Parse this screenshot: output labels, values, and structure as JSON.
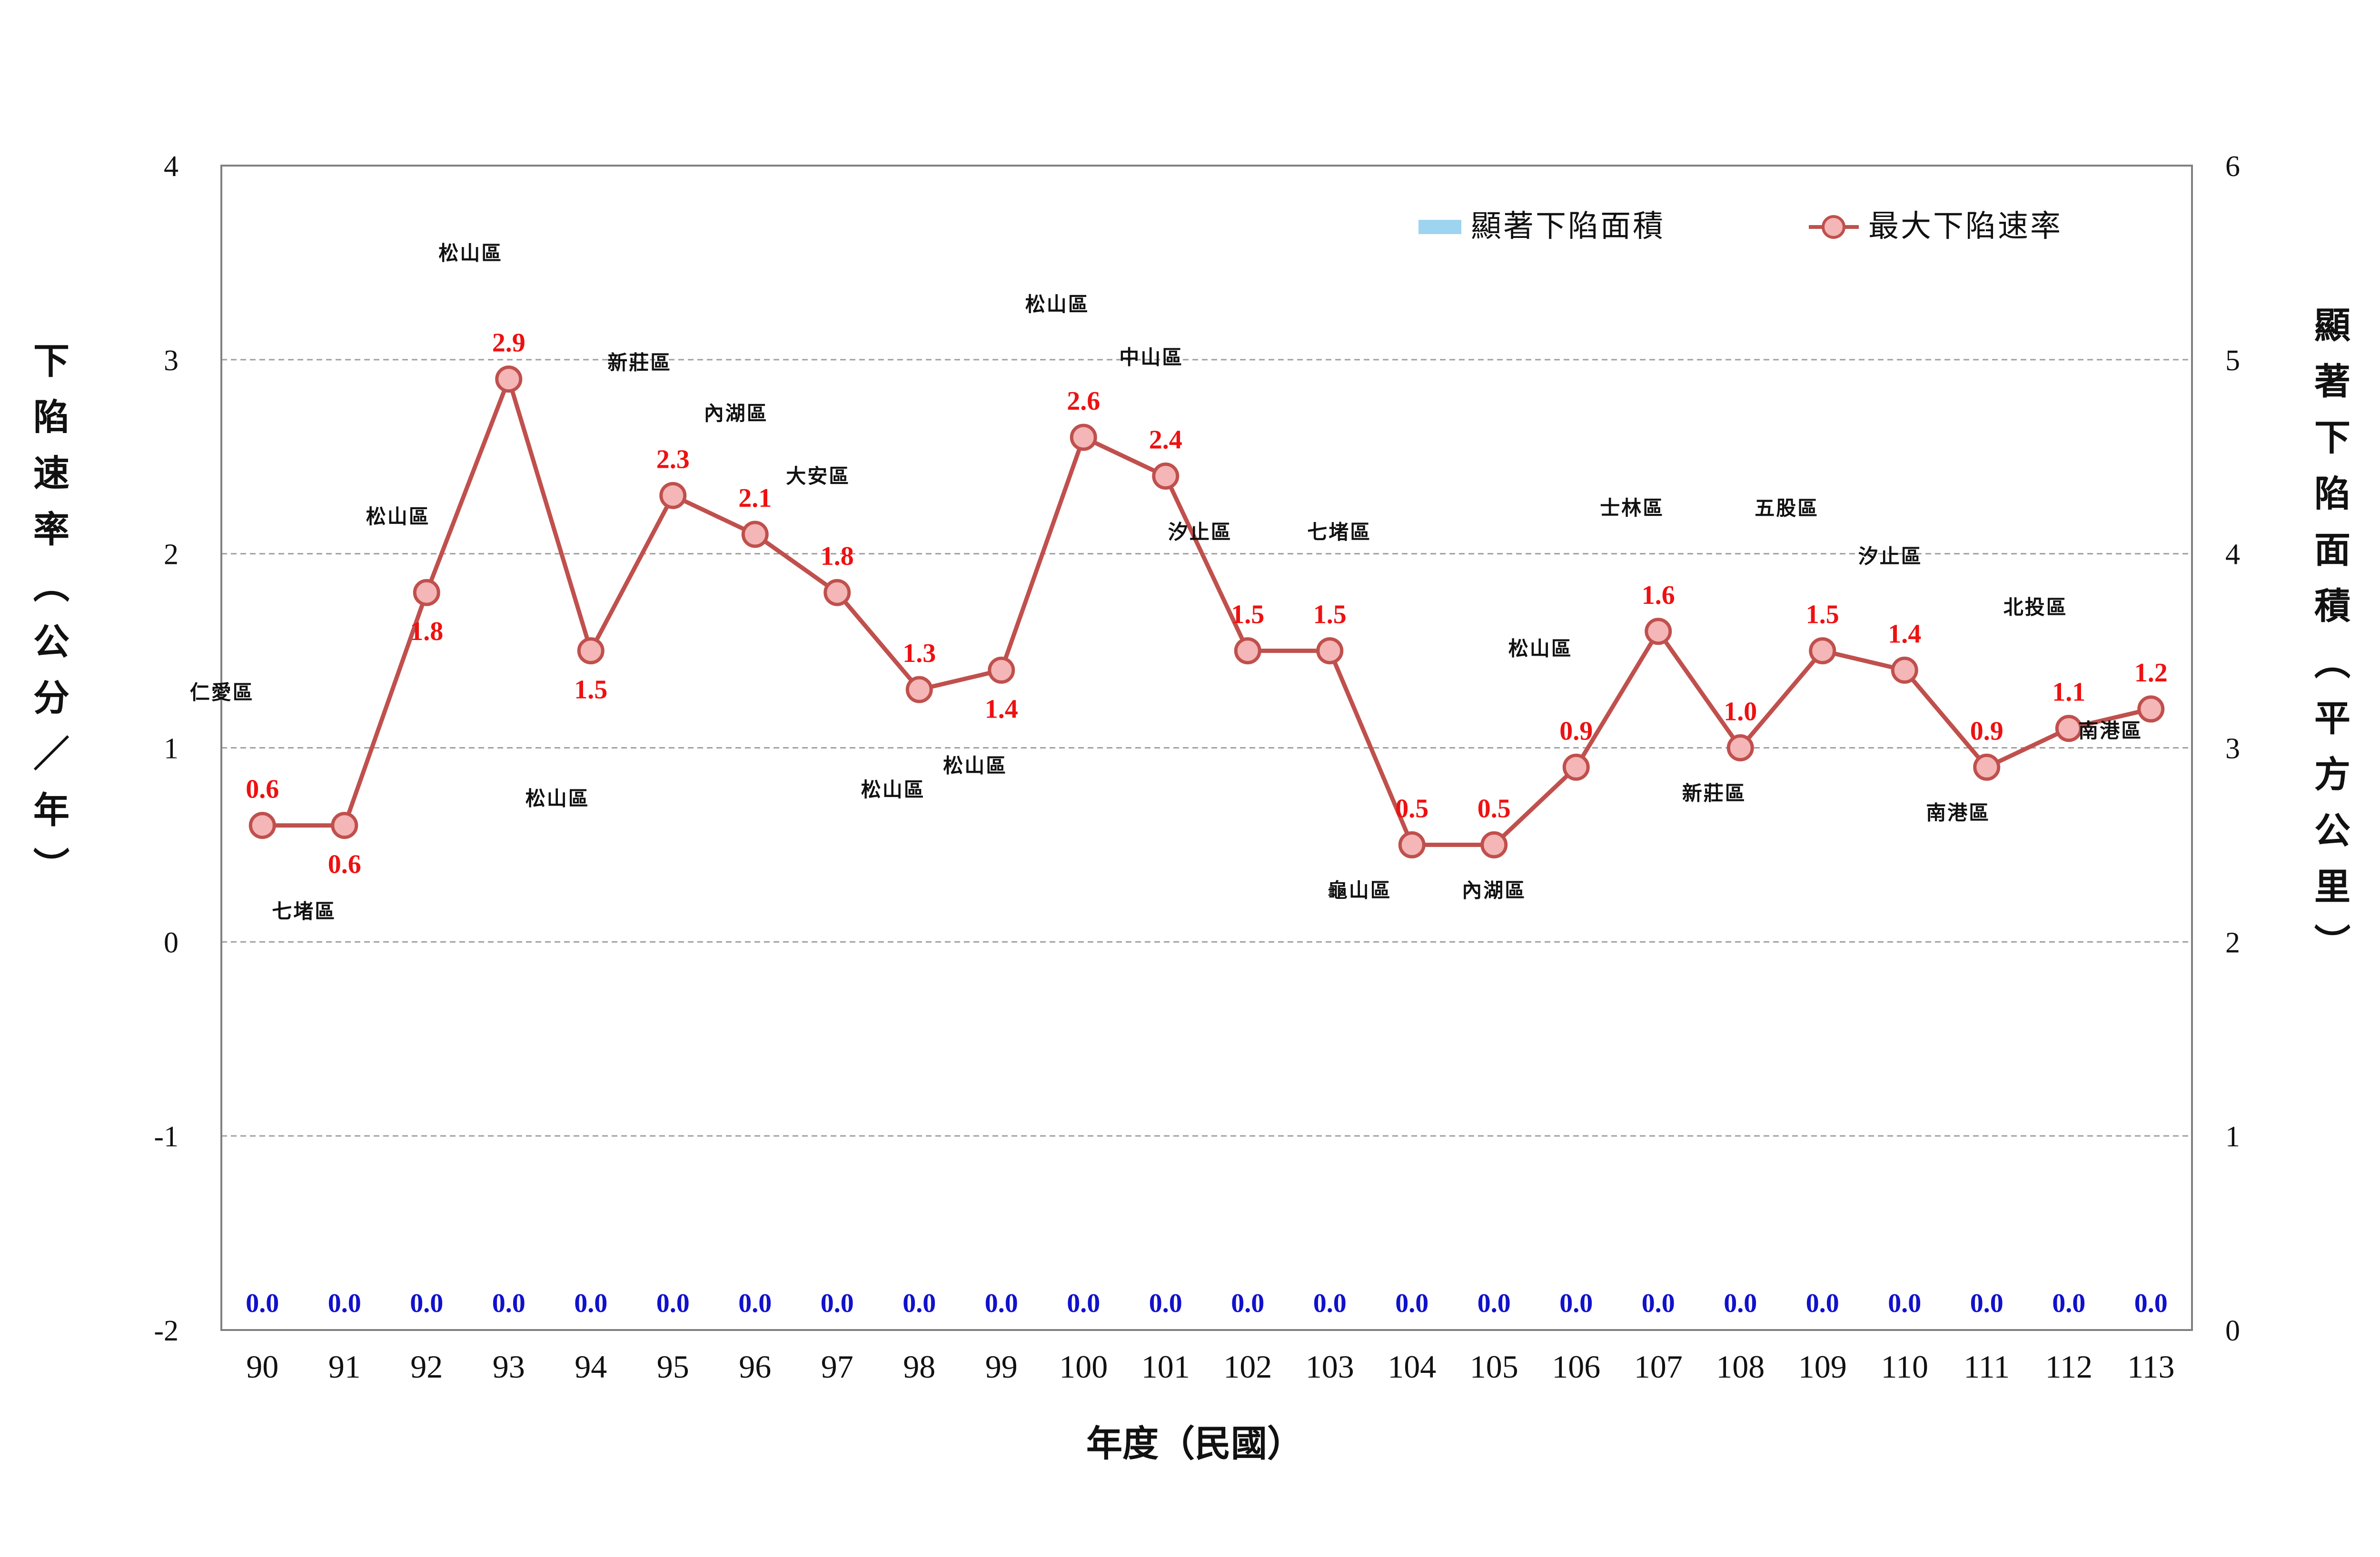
{
  "chart_data": {
    "type": "line",
    "categories": [
      "90",
      "91",
      "92",
      "93",
      "94",
      "95",
      "96",
      "97",
      "98",
      "99",
      "100",
      "101",
      "102",
      "103",
      "104",
      "105",
      "106",
      "107",
      "108",
      "109",
      "110",
      "111",
      "112",
      "113"
    ],
    "series": [
      {
        "name": "最大下陷速率",
        "axis": "left",
        "values": [
          0.6,
          0.6,
          1.8,
          2.9,
          1.5,
          2.3,
          2.1,
          1.8,
          1.3,
          1.4,
          2.6,
          2.4,
          1.5,
          1.5,
          0.5,
          0.5,
          0.9,
          1.6,
          1.0,
          1.5,
          1.4,
          0.9,
          1.1,
          1.2
        ],
        "labels": [
          "0.6",
          "0.6",
          "1.8",
          "2.9",
          "1.5",
          "2.3",
          "2.1",
          "1.8",
          "1.3",
          "1.4",
          "2.6",
          "2.4",
          "1.5",
          "1.5",
          "0.5",
          "0.5",
          "0.9",
          "1.6",
          "1.0",
          "1.5",
          "1.4",
          "0.9",
          "1.1",
          "1.2"
        ],
        "color": "#c0504d",
        "marker_fill": "#f4b6b6"
      },
      {
        "name": "顯著下陷面積",
        "axis": "right",
        "type": "bar",
        "values": [
          0,
          0,
          0,
          0,
          0,
          0,
          0,
          0,
          0,
          0,
          0,
          0,
          0,
          0,
          0,
          0,
          0,
          0,
          0,
          0,
          0,
          0,
          0,
          0
        ],
        "labels": [
          "0.0",
          "0.0",
          "0.0",
          "0.0",
          "0.0",
          "0.0",
          "0.0",
          "0.0",
          "0.0",
          "0.0",
          "0.0",
          "0.0",
          "0.0",
          "0.0",
          "0.0",
          "0.0",
          "0.0",
          "0.0",
          "0.0",
          "0.0",
          "0.0",
          "0.0",
          "0.0",
          "0.0"
        ],
        "color": "#9fd4f0"
      }
    ],
    "districts": [
      "仁愛區",
      "七堵區",
      "松山區",
      "松山區",
      "松山區",
      "新莊區",
      "內湖區",
      "大安區",
      "松山區",
      "松山區",
      "松山區",
      "中山區",
      "汐止區",
      "七堵區",
      "龜山區",
      "內湖區",
      "松山區",
      "士林區",
      "新莊區",
      "五股區",
      "汐止區",
      "南港區",
      "北投區",
      "南港區"
    ],
    "xlabel": "年度（民國）",
    "ylabel": "下陷速率（公分／年）",
    "ylabel_right": "顯著下陷面積(平方公里)",
    "y_ticks": [
      "4",
      "3",
      "2",
      "1",
      "0",
      "-1",
      "-2"
    ],
    "y2_ticks": [
      "6",
      "5",
      "4",
      "3",
      "2",
      "1",
      "0"
    ],
    "ylim": [
      -2,
      4
    ],
    "ylim_right": [
      0,
      6
    ],
    "grid": true,
    "legend_position": "top-right"
  }
}
